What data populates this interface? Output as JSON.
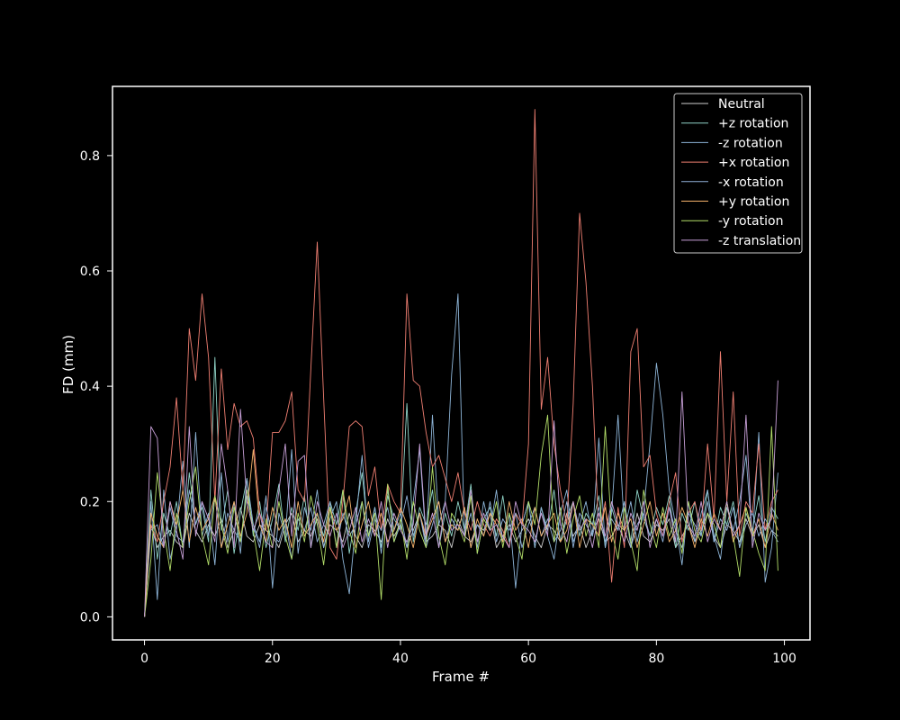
{
  "chart_data": {
    "type": "line",
    "title": "",
    "xlabel": "Frame #",
    "ylabel": "FD (mm)",
    "xlim": [
      -5,
      104
    ],
    "ylim": [
      -0.04,
      0.92
    ],
    "xticks": [
      0,
      20,
      40,
      60,
      80,
      100
    ],
    "yticks": [
      0.0,
      0.2,
      0.4,
      0.6,
      0.8
    ],
    "xtick_labels": [
      "0",
      "20",
      "40",
      "60",
      "80",
      "100"
    ],
    "ytick_labels": [
      "0.0",
      "0.2",
      "0.4",
      "0.6",
      "0.8"
    ],
    "grid": false,
    "legend_position": "upper right",
    "x": [
      0,
      1,
      2,
      3,
      4,
      5,
      6,
      7,
      8,
      9,
      10,
      11,
      12,
      13,
      14,
      15,
      16,
      17,
      18,
      19,
      20,
      21,
      22,
      23,
      24,
      25,
      26,
      27,
      28,
      29,
      30,
      31,
      32,
      33,
      34,
      35,
      36,
      37,
      38,
      39,
      40,
      41,
      42,
      43,
      44,
      45,
      46,
      47,
      48,
      49,
      50,
      51,
      52,
      53,
      54,
      55,
      56,
      57,
      58,
      59,
      60,
      61,
      62,
      63,
      64,
      65,
      66,
      67,
      68,
      69,
      70,
      71,
      72,
      73,
      74,
      75,
      76,
      77,
      78,
      79,
      80,
      81,
      82,
      83,
      84,
      85,
      86,
      87,
      88,
      89,
      90,
      91,
      92,
      93,
      94,
      95,
      96,
      97,
      98,
      99
    ],
    "series": [
      {
        "name": "Neutral",
        "color": "#cfcfcf",
        "values": [
          0.0,
          0.16,
          0.12,
          0.14,
          0.15,
          0.13,
          0.12,
          0.18,
          0.15,
          0.13,
          0.16,
          0.14,
          0.17,
          0.12,
          0.15,
          0.19,
          0.14,
          0.13,
          0.16,
          0.15,
          0.14,
          0.12,
          0.16,
          0.18,
          0.13,
          0.15,
          0.14,
          0.17,
          0.12,
          0.16,
          0.15,
          0.13,
          0.18,
          0.14,
          0.12,
          0.16,
          0.15,
          0.13,
          0.17,
          0.14,
          0.16,
          0.12,
          0.15,
          0.18,
          0.13,
          0.14,
          0.16,
          0.15,
          0.12,
          0.17,
          0.14,
          0.13,
          0.16,
          0.15,
          0.18,
          0.12,
          0.14,
          0.16,
          0.13,
          0.15,
          0.17,
          0.14,
          0.12,
          0.16,
          0.15,
          0.13,
          0.18,
          0.14,
          0.16,
          0.12,
          0.15,
          0.17,
          0.13,
          0.14,
          0.16,
          0.15,
          0.12,
          0.18,
          0.14,
          0.13,
          0.16,
          0.15,
          0.17,
          0.12,
          0.14,
          0.16,
          0.13,
          0.15,
          0.18,
          0.14,
          0.12,
          0.16,
          0.15,
          0.13,
          0.17,
          0.14,
          0.16,
          0.12,
          0.15,
          0.14
        ]
      },
      {
        "name": "+z rotation",
        "color": "#8fd3c7",
        "values": [
          0.0,
          0.22,
          0.1,
          0.18,
          0.14,
          0.2,
          0.12,
          0.25,
          0.16,
          0.19,
          0.13,
          0.45,
          0.15,
          0.22,
          0.11,
          0.18,
          0.24,
          0.14,
          0.2,
          0.12,
          0.17,
          0.23,
          0.13,
          0.19,
          0.15,
          0.21,
          0.12,
          0.18,
          0.14,
          0.2,
          0.16,
          0.22,
          0.11,
          0.18,
          0.25,
          0.14,
          0.19,
          0.12,
          0.21,
          0.17,
          0.15,
          0.37,
          0.13,
          0.19,
          0.16,
          0.22,
          0.12,
          0.18,
          0.14,
          0.2,
          0.15,
          0.23,
          0.11,
          0.17,
          0.19,
          0.14,
          0.21,
          0.13,
          0.18,
          0.16,
          0.2,
          0.12,
          0.19,
          0.15,
          0.22,
          0.13,
          0.17,
          0.2,
          0.14,
          0.18,
          0.16,
          0.21,
          0.12,
          0.19,
          0.15,
          0.2,
          0.13,
          0.22,
          0.17,
          0.14,
          0.19,
          0.16,
          0.21,
          0.12,
          0.18,
          0.15,
          0.2,
          0.14,
          0.22,
          0.13,
          0.19,
          0.16,
          0.2,
          0.12,
          0.18,
          0.15,
          0.21,
          0.13,
          0.19,
          0.17
        ]
      },
      {
        "name": "-z rotation",
        "color": "#8eb5d8",
        "values": [
          0.0,
          0.2,
          0.03,
          0.22,
          0.1,
          0.15,
          0.27,
          0.12,
          0.32,
          0.14,
          0.18,
          0.09,
          0.25,
          0.13,
          0.2,
          0.11,
          0.24,
          0.16,
          0.13,
          0.21,
          0.05,
          0.18,
          0.14,
          0.29,
          0.11,
          0.19,
          0.15,
          0.22,
          0.12,
          0.17,
          0.2,
          0.1,
          0.04,
          0.16,
          0.28,
          0.13,
          0.19,
          0.11,
          0.22,
          0.15,
          0.18,
          0.12,
          0.2,
          0.29,
          0.13,
          0.35,
          0.16,
          0.2,
          0.42,
          0.56,
          0.14,
          0.18,
          0.12,
          0.2,
          0.15,
          0.22,
          0.13,
          0.18,
          0.05,
          0.16,
          0.2,
          0.12,
          0.19,
          0.14,
          0.1,
          0.18,
          0.22,
          0.13,
          0.16,
          0.2,
          0.14,
          0.31,
          0.12,
          0.18,
          0.35,
          0.15,
          0.2,
          0.13,
          0.18,
          0.3,
          0.44,
          0.35,
          0.22,
          0.16,
          0.09,
          0.2,
          0.13,
          0.18,
          0.22,
          0.14,
          0.1,
          0.19,
          0.15,
          0.2,
          0.28,
          0.13,
          0.32,
          0.06,
          0.12,
          0.25
        ]
      },
      {
        "name": "+x rotation",
        "color": "#f07f72",
        "values": [
          0.0,
          0.16,
          0.13,
          0.2,
          0.26,
          0.38,
          0.22,
          0.5,
          0.41,
          0.56,
          0.45,
          0.2,
          0.43,
          0.29,
          0.37,
          0.33,
          0.34,
          0.31,
          0.18,
          0.15,
          0.32,
          0.32,
          0.34,
          0.39,
          0.22,
          0.2,
          0.43,
          0.65,
          0.38,
          0.12,
          0.1,
          0.2,
          0.33,
          0.34,
          0.33,
          0.21,
          0.26,
          0.15,
          0.23,
          0.2,
          0.18,
          0.56,
          0.41,
          0.4,
          0.32,
          0.26,
          0.28,
          0.24,
          0.2,
          0.25,
          0.18,
          0.15,
          0.2,
          0.16,
          0.14,
          0.17,
          0.15,
          0.12,
          0.18,
          0.16,
          0.3,
          0.88,
          0.36,
          0.45,
          0.3,
          0.22,
          0.16,
          0.37,
          0.7,
          0.58,
          0.4,
          0.14,
          0.2,
          0.06,
          0.19,
          0.12,
          0.46,
          0.5,
          0.26,
          0.28,
          0.18,
          0.14,
          0.2,
          0.25,
          0.13,
          0.18,
          0.2,
          0.15,
          0.3,
          0.17,
          0.46,
          0.2,
          0.39,
          0.14,
          0.2,
          0.18,
          0.3,
          0.15,
          0.2,
          0.22
        ]
      },
      {
        "name": "-x rotation",
        "color": "#8fb0d8",
        "values": [
          0.0,
          0.15,
          0.16,
          0.12,
          0.19,
          0.14,
          0.13,
          0.22,
          0.16,
          0.2,
          0.14,
          0.21,
          0.12,
          0.18,
          0.15,
          0.13,
          0.21,
          0.16,
          0.12,
          0.19,
          0.14,
          0.13,
          0.17,
          0.1,
          0.17,
          0.15,
          0.19,
          0.13,
          0.16,
          0.2,
          0.12,
          0.18,
          0.14,
          0.16,
          0.2,
          0.12,
          0.17,
          0.15,
          0.19,
          0.13,
          0.16,
          0.21,
          0.14,
          0.18,
          0.12,
          0.16,
          0.2,
          0.13,
          0.17,
          0.15,
          0.19,
          0.12,
          0.16,
          0.14,
          0.2,
          0.13,
          0.17,
          0.15,
          0.18,
          0.12,
          0.16,
          0.19,
          0.14,
          0.17,
          0.13,
          0.15,
          0.2,
          0.12,
          0.18,
          0.16,
          0.14,
          0.19,
          0.13,
          0.17,
          0.15,
          0.2,
          0.12,
          0.16,
          0.18,
          0.14,
          0.17,
          0.13,
          0.19,
          0.15,
          0.12,
          0.18,
          0.16,
          0.14,
          0.2,
          0.13,
          0.17,
          0.15,
          0.19,
          0.12,
          0.16,
          0.18,
          0.14,
          0.17,
          0.15,
          0.13
        ]
      },
      {
        "name": "+y rotation",
        "color": "#f5b26b",
        "values": [
          0.0,
          0.18,
          0.14,
          0.12,
          0.2,
          0.16,
          0.22,
          0.13,
          0.19,
          0.15,
          0.17,
          0.21,
          0.12,
          0.16,
          0.2,
          0.14,
          0.18,
          0.29,
          0.16,
          0.13,
          0.19,
          0.15,
          0.17,
          0.12,
          0.2,
          0.14,
          0.16,
          0.18,
          0.13,
          0.19,
          0.15,
          0.17,
          0.21,
          0.12,
          0.16,
          0.2,
          0.14,
          0.18,
          0.13,
          0.15,
          0.19,
          0.16,
          0.12,
          0.18,
          0.14,
          0.17,
          0.2,
          0.13,
          0.16,
          0.15,
          0.19,
          0.12,
          0.17,
          0.14,
          0.18,
          0.16,
          0.13,
          0.2,
          0.15,
          0.17,
          0.12,
          0.19,
          0.14,
          0.16,
          0.18,
          0.13,
          0.15,
          0.2,
          0.12,
          0.17,
          0.16,
          0.14,
          0.19,
          0.13,
          0.18,
          0.15,
          0.17,
          0.12,
          0.16,
          0.2,
          0.14,
          0.18,
          0.13,
          0.15,
          0.19,
          0.16,
          0.12,
          0.17,
          0.14,
          0.18,
          0.15,
          0.2,
          0.13,
          0.16,
          0.19,
          0.14,
          0.17,
          0.12,
          0.18,
          0.15
        ]
      },
      {
        "name": "-y rotation",
        "color": "#b3de69",
        "values": [
          0.0,
          0.1,
          0.25,
          0.15,
          0.08,
          0.18,
          0.12,
          0.2,
          0.26,
          0.14,
          0.09,
          0.21,
          0.16,
          0.11,
          0.19,
          0.13,
          0.22,
          0.15,
          0.08,
          0.17,
          0.12,
          0.2,
          0.14,
          0.1,
          0.18,
          0.13,
          0.21,
          0.16,
          0.09,
          0.19,
          0.12,
          0.22,
          0.15,
          0.11,
          0.2,
          0.14,
          0.18,
          0.03,
          0.23,
          0.13,
          0.17,
          0.1,
          0.2,
          0.15,
          0.12,
          0.26,
          0.14,
          0.09,
          0.18,
          0.16,
          0.13,
          0.21,
          0.11,
          0.17,
          0.15,
          0.2,
          0.12,
          0.18,
          0.14,
          0.1,
          0.2,
          0.16,
          0.28,
          0.35,
          0.13,
          0.19,
          0.11,
          0.17,
          0.21,
          0.14,
          0.18,
          0.12,
          0.33,
          0.15,
          0.1,
          0.19,
          0.13,
          0.08,
          0.22,
          0.16,
          0.12,
          0.19,
          0.14,
          0.17,
          0.11,
          0.2,
          0.15,
          0.13,
          0.18,
          0.16,
          0.12,
          0.2,
          0.14,
          0.07,
          0.19,
          0.15,
          0.11,
          0.08,
          0.33,
          0.08
        ]
      },
      {
        "name": "-z translation",
        "color": "#c8a0d8",
        "values": [
          0.0,
          0.33,
          0.31,
          0.12,
          0.2,
          0.15,
          0.1,
          0.33,
          0.14,
          0.2,
          0.17,
          0.13,
          0.3,
          0.22,
          0.12,
          0.36,
          0.2,
          0.15,
          0.18,
          0.13,
          0.12,
          0.22,
          0.3,
          0.14,
          0.27,
          0.28,
          0.12,
          0.2,
          0.16,
          0.14,
          0.18,
          0.12,
          0.15,
          0.19,
          0.13,
          0.17,
          0.14,
          0.2,
          0.12,
          0.18,
          0.15,
          0.13,
          0.16,
          0.3,
          0.14,
          0.18,
          0.12,
          0.2,
          0.15,
          0.16,
          0.14,
          0.22,
          0.13,
          0.18,
          0.15,
          0.16,
          0.14,
          0.12,
          0.2,
          0.16,
          0.15,
          0.13,
          0.18,
          0.14,
          0.34,
          0.16,
          0.13,
          0.2,
          0.15,
          0.17,
          0.12,
          0.18,
          0.14,
          0.2,
          0.16,
          0.13,
          0.18,
          0.15,
          0.2,
          0.12,
          0.17,
          0.14,
          0.19,
          0.13,
          0.39,
          0.16,
          0.14,
          0.2,
          0.13,
          0.17,
          0.15,
          0.2,
          0.14,
          0.16,
          0.35,
          0.12,
          0.18,
          0.15,
          0.17,
          0.41
        ]
      }
    ]
  },
  "colors": {
    "background": "#000000",
    "foreground": "#ffffff"
  }
}
